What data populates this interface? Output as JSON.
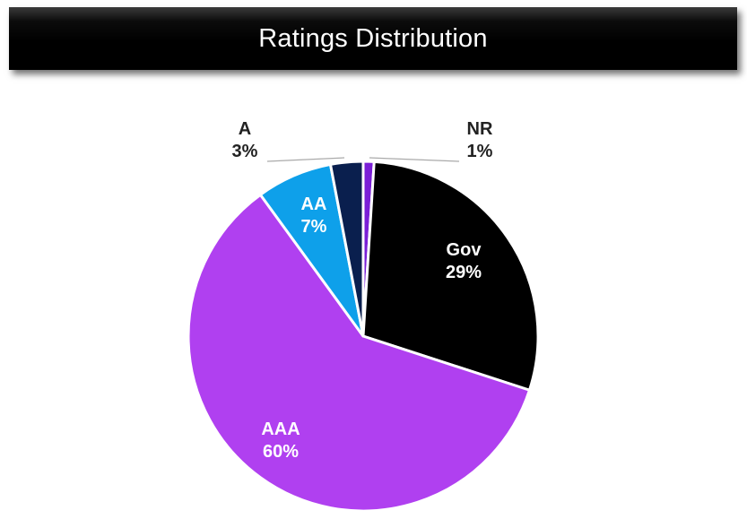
{
  "title": "Ratings Distribution",
  "chart_data": {
    "type": "pie",
    "title": "Ratings Distribution",
    "start_angle_deg": 0,
    "direction": "clockwise",
    "slices": [
      {
        "label": "NR",
        "value": 1,
        "percent_label": "1%",
        "color": "#7a1fd6",
        "label_style": "outside",
        "text_color": "#222222"
      },
      {
        "label": "Gov",
        "value": 29,
        "percent_label": "29%",
        "color": "#000000",
        "label_style": "inside",
        "text_color": "#ffffff"
      },
      {
        "label": "AAA",
        "value": 60,
        "percent_label": "60%",
        "color": "#b040f0",
        "label_style": "inside",
        "text_color": "#ffffff"
      },
      {
        "label": "AA",
        "value": 7,
        "percent_label": "7%",
        "color": "#0ea0ea",
        "label_style": "inside",
        "text_color": "#ffffff"
      },
      {
        "label": "A",
        "value": 3,
        "percent_label": "3%",
        "color": "#0a1f4e",
        "label_style": "outside",
        "text_color": "#222222"
      }
    ]
  }
}
